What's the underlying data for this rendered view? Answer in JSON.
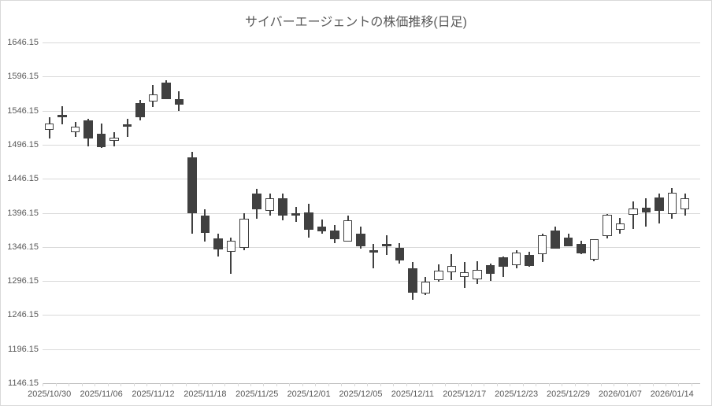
{
  "chart_data": {
    "type": "candlestick",
    "title": "サイバーエージェントの株価推移(日足)",
    "legend": "none",
    "grid": "horizontal",
    "y_axis": {
      "min": 1146.15,
      "max": 1646.15,
      "step": 50,
      "tick_labels": [
        "1646.15",
        "1596.15",
        "1546.15",
        "1496.15",
        "1446.15",
        "1396.15",
        "1346.15",
        "1296.15",
        "1246.15",
        "1196.15",
        "1146.15"
      ]
    },
    "x_axis": {
      "label_interval": 4,
      "tick_labels": [
        "2025/10/30",
        "2025/11/06",
        "2025/11/12",
        "2025/11/18",
        "2025/11/25",
        "2025/12/01",
        "2025/12/05",
        "2025/12/11",
        "2025/12/17",
        "2025/12/23",
        "2025/12/29",
        "2026/01/07",
        "2026/01/14"
      ]
    },
    "candles": [
      {
        "date": "2025/10/30",
        "open": 1518,
        "high": 1536,
        "low": 1505,
        "close": 1527
      },
      {
        "date": "2025/10/31",
        "open": 1540,
        "high": 1553,
        "low": 1526,
        "close": 1537
      },
      {
        "date": "2025/11/04",
        "open": 1515,
        "high": 1530,
        "low": 1508,
        "close": 1523
      },
      {
        "date": "2025/11/05",
        "open": 1532,
        "high": 1534,
        "low": 1494,
        "close": 1505
      },
      {
        "date": "2025/11/06",
        "open": 1512,
        "high": 1527,
        "low": 1491,
        "close": 1492
      },
      {
        "date": "2025/11/07",
        "open": 1502,
        "high": 1515,
        "low": 1494,
        "close": 1506
      },
      {
        "date": "2025/11/10",
        "open": 1526,
        "high": 1534,
        "low": 1508,
        "close": 1523
      },
      {
        "date": "2025/11/11",
        "open": 1557,
        "high": 1562,
        "low": 1532,
        "close": 1537
      },
      {
        "date": "2025/11/12",
        "open": 1560,
        "high": 1584,
        "low": 1552,
        "close": 1570
      },
      {
        "date": "2025/11/13",
        "open": 1587,
        "high": 1591,
        "low": 1563,
        "close": 1563
      },
      {
        "date": "2025/11/14",
        "open": 1563,
        "high": 1575,
        "low": 1546,
        "close": 1555
      },
      {
        "date": "2025/11/17",
        "open": 1477,
        "high": 1486,
        "low": 1365,
        "close": 1395
      },
      {
        "date": "2025/11/18",
        "open": 1392,
        "high": 1401,
        "low": 1354,
        "close": 1367
      },
      {
        "date": "2025/11/19",
        "open": 1359,
        "high": 1365,
        "low": 1332,
        "close": 1342
      },
      {
        "date": "2025/11/20",
        "open": 1339,
        "high": 1360,
        "low": 1307,
        "close": 1355
      },
      {
        "date": "2025/11/21",
        "open": 1345,
        "high": 1395,
        "low": 1341,
        "close": 1388
      },
      {
        "date": "2025/11/25",
        "open": 1424,
        "high": 1431,
        "low": 1388,
        "close": 1401
      },
      {
        "date": "2025/11/26",
        "open": 1399,
        "high": 1424,
        "low": 1392,
        "close": 1417
      },
      {
        "date": "2025/11/27",
        "open": 1418,
        "high": 1424,
        "low": 1385,
        "close": 1392
      },
      {
        "date": "2025/11/28",
        "open": 1395,
        "high": 1405,
        "low": 1383,
        "close": 1392
      },
      {
        "date": "2025/12/01",
        "open": 1397,
        "high": 1409,
        "low": 1360,
        "close": 1371
      },
      {
        "date": "2025/12/02",
        "open": 1376,
        "high": 1386,
        "low": 1365,
        "close": 1369
      },
      {
        "date": "2025/12/03",
        "open": 1370,
        "high": 1378,
        "low": 1352,
        "close": 1358
      },
      {
        "date": "2025/12/04",
        "open": 1354,
        "high": 1392,
        "low": 1354,
        "close": 1385
      },
      {
        "date": "2025/12/05",
        "open": 1365,
        "high": 1376,
        "low": 1344,
        "close": 1347
      },
      {
        "date": "2025/12/08",
        "open": 1341,
        "high": 1351,
        "low": 1315,
        "close": 1338
      },
      {
        "date": "2025/12/09",
        "open": 1350,
        "high": 1363,
        "low": 1334,
        "close": 1347
      },
      {
        "date": "2025/12/10",
        "open": 1345,
        "high": 1352,
        "low": 1322,
        "close": 1326
      },
      {
        "date": "2025/12/11",
        "open": 1315,
        "high": 1324,
        "low": 1268,
        "close": 1279
      },
      {
        "date": "2025/12/12",
        "open": 1278,
        "high": 1302,
        "low": 1275,
        "close": 1295
      },
      {
        "date": "2025/12/15",
        "open": 1297,
        "high": 1320,
        "low": 1295,
        "close": 1311
      },
      {
        "date": "2025/12/16",
        "open": 1309,
        "high": 1336,
        "low": 1297,
        "close": 1318
      },
      {
        "date": "2025/12/17",
        "open": 1302,
        "high": 1324,
        "low": 1286,
        "close": 1309
      },
      {
        "date": "2025/12/18",
        "open": 1299,
        "high": 1325,
        "low": 1292,
        "close": 1313
      },
      {
        "date": "2025/12/19",
        "open": 1319,
        "high": 1322,
        "low": 1296,
        "close": 1307
      },
      {
        "date": "2025/12/22",
        "open": 1331,
        "high": 1332,
        "low": 1302,
        "close": 1317
      },
      {
        "date": "2025/12/23",
        "open": 1319,
        "high": 1341,
        "low": 1315,
        "close": 1338
      },
      {
        "date": "2025/12/24",
        "open": 1334,
        "high": 1339,
        "low": 1317,
        "close": 1318
      },
      {
        "date": "2025/12/25",
        "open": 1336,
        "high": 1365,
        "low": 1324,
        "close": 1363
      },
      {
        "date": "2025/12/26",
        "open": 1370,
        "high": 1376,
        "low": 1344,
        "close": 1344
      },
      {
        "date": "2025/12/29",
        "open": 1360,
        "high": 1365,
        "low": 1347,
        "close": 1347
      },
      {
        "date": "2025/12/30",
        "open": 1350,
        "high": 1355,
        "low": 1335,
        "close": 1337
      },
      {
        "date": "2026/01/05",
        "open": 1327,
        "high": 1358,
        "low": 1325,
        "close": 1358
      },
      {
        "date": "2026/01/06",
        "open": 1362,
        "high": 1394,
        "low": 1359,
        "close": 1393
      },
      {
        "date": "2026/01/07",
        "open": 1371,
        "high": 1389,
        "low": 1365,
        "close": 1381
      },
      {
        "date": "2026/01/08",
        "open": 1393,
        "high": 1413,
        "low": 1373,
        "close": 1403
      },
      {
        "date": "2026/01/09",
        "open": 1404,
        "high": 1418,
        "low": 1376,
        "close": 1397
      },
      {
        "date": "2026/01/13",
        "open": 1419,
        "high": 1424,
        "low": 1380,
        "close": 1399
      },
      {
        "date": "2026/01/14",
        "open": 1394,
        "high": 1432,
        "low": 1388,
        "close": 1426
      },
      {
        "date": "2026/01/15",
        "open": 1401,
        "high": 1425,
        "low": 1392,
        "close": 1417
      }
    ],
    "colors": {
      "up_fill": "#FFFFFF",
      "down_fill": "#404040",
      "outline": "#404040",
      "gridline": "#D9D9D9",
      "axis_line": "#BFBFBF",
      "text": "#595959",
      "background": "#FFFFFF",
      "border": "#D9D9D9"
    }
  }
}
